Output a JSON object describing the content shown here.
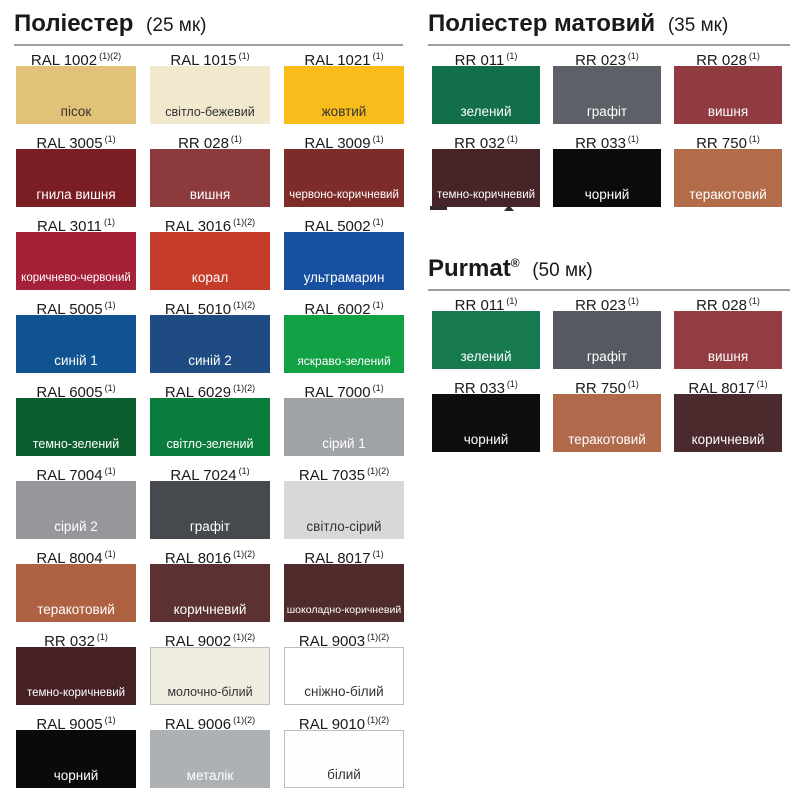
{
  "page": {
    "background": "#ffffff"
  },
  "sections": [
    {
      "id": "polyester",
      "title": "Поліестер",
      "reg": "",
      "suffix": "(25 мк)",
      "swatches": [
        {
          "code": "RAL 1002",
          "sup": "(1)(2)",
          "name": "пісок",
          "color": "#E2C178",
          "label_color": "#3a3428",
          "border": false
        },
        {
          "code": "RAL 1015",
          "sup": "(1)",
          "name": "світло-бежевий",
          "color": "#F2E8CE",
          "label_color": "#333333",
          "border": false
        },
        {
          "code": "RAL 1021",
          "sup": "(1)",
          "name": "жовтий",
          "color": "#F8BC1B",
          "label_color": "#333333",
          "border": false
        },
        {
          "code": "RAL 3005",
          "sup": "(1)",
          "name": "гнила вишня",
          "color": "#7B1E23",
          "label_color": "#ffffff",
          "border": false
        },
        {
          "code": "RR 028",
          "sup": "(1)",
          "name": "вишня",
          "color": "#8D3A3D",
          "label_color": "#ffffff",
          "border": false
        },
        {
          "code": "RAL 3009",
          "sup": "(1)",
          "name": "червоно-коричневий",
          "color": "#7D2C29",
          "label_color": "#ffffff",
          "border": false
        },
        {
          "code": "RAL 3011",
          "sup": "(1)",
          "name": "коричнево-червоний",
          "color": "#A42138",
          "label_color": "#ffffff",
          "border": false
        },
        {
          "code": "RAL 3016",
          "sup": "(1)(2)",
          "name": "корал",
          "color": "#C53C2A",
          "label_color": "#ffffff",
          "border": false
        },
        {
          "code": "RAL 5002",
          "sup": "(1)",
          "name": "ультрамарин",
          "color": "#1750A0",
          "label_color": "#ffffff",
          "border": false
        },
        {
          "code": "RAL 5005",
          "sup": "(1)",
          "name": "синій 1",
          "color": "#0F5490",
          "label_color": "#ffffff",
          "border": false
        },
        {
          "code": "RAL 5010",
          "sup": "(1)(2)",
          "name": "синій 2",
          "color": "#1E4B82",
          "label_color": "#ffffff",
          "border": false
        },
        {
          "code": "RAL 6002",
          "sup": "(1)",
          "name": "яскраво-зелений",
          "color": "#12A245",
          "label_color": "#ffffff",
          "border": false
        },
        {
          "code": "RAL 6005",
          "sup": "(1)",
          "name": "темно-зелений",
          "color": "#0B5D2E",
          "label_color": "#ffffff",
          "border": false
        },
        {
          "code": "RAL 6029",
          "sup": "(1)(2)",
          "name": "світло-зелений",
          "color": "#0A7D3C",
          "label_color": "#ffffff",
          "border": false
        },
        {
          "code": "RAL 7000",
          "sup": "(1)",
          "name": "сірий 1",
          "color": "#9FA2A6",
          "label_color": "#ffffff",
          "border": false
        },
        {
          "code": "RAL 7004",
          "sup": "(1)",
          "name": "сірий 2",
          "color": "#95979B",
          "label_color": "#ffffff",
          "border": false
        },
        {
          "code": "RAL 7024",
          "sup": "(1)",
          "name": "графіт",
          "color": "#46494D",
          "label_color": "#ffffff",
          "border": false
        },
        {
          "code": "RAL 7035",
          "sup": "(1)(2)",
          "name": "світло-сірий",
          "color": "#D6D8DA",
          "label_color": "#333333",
          "border": false
        },
        {
          "code": "RAL 8004",
          "sup": "(1)",
          "name": "теракотовий",
          "color": "#AE6242",
          "label_color": "#ffffff",
          "border": false
        },
        {
          "code": "RAL 8016",
          "sup": "(1)(2)",
          "name": "коричневий",
          "color": "#5C3132",
          "label_color": "#ffffff",
          "border": false
        },
        {
          "code": "RAL 8017",
          "sup": "(1)",
          "name": "шоколадно-коричневий",
          "color": "#4F2B2C",
          "label_color": "#ffffff",
          "border": false
        },
        {
          "code": "RR 032",
          "sup": "(1)",
          "name": "темно-коричневий",
          "color": "#452125",
          "label_color": "#ffffff",
          "border": false
        },
        {
          "code": "RAL 9002",
          "sup": "(1)(2)",
          "name": "молочно-білий",
          "color": "#EFEDE0",
          "label_color": "#333333",
          "border": true
        },
        {
          "code": "RAL 9003",
          "sup": "(1)(2)",
          "name": "сніжно-білий",
          "color": "#FFFFFF",
          "label_color": "#333333",
          "border": true
        },
        {
          "code": "RAL 9005",
          "sup": "(1)",
          "name": "чорний",
          "color": "#0A0A0A",
          "label_color": "#ffffff",
          "border": false
        },
        {
          "code": "RAL 9006",
          "sup": "(1)(2)",
          "name": "металік",
          "color": "#AEB1B4",
          "label_color": "#ffffff",
          "border": false
        },
        {
          "code": "RAL 9010",
          "sup": "(1)(2)",
          "name": "білий",
          "color": "#FEFEFE",
          "label_color": "#333333",
          "border": true
        }
      ]
    },
    {
      "id": "polyester-matte",
      "title": "Поліестер матовий",
      "reg": "",
      "suffix": "(35 мк)",
      "swatches": [
        {
          "code": "RR 011",
          "sup": "(1)",
          "name": "зелений",
          "color": "#136F4A",
          "label_color": "#ffffff",
          "border": false
        },
        {
          "code": "RR 023",
          "sup": "(1)",
          "name": "графіт",
          "color": "#5D6167",
          "label_color": "#ffffff",
          "border": false
        },
        {
          "code": "RR 028",
          "sup": "(1)",
          "name": "вишня",
          "color": "#8F3B3F",
          "label_color": "#ffffff",
          "border": false
        },
        {
          "code": "RR 032",
          "sup": "(1)",
          "name": "темно-коричневий",
          "color": "#462428",
          "label_color": "#ffffff",
          "border": false
        },
        {
          "code": "RR 033",
          "sup": "(1)",
          "name": "чорний",
          "color": "#0B0B0B",
          "label_color": "#ffffff",
          "border": false
        },
        {
          "code": "RR 750",
          "sup": "(1)",
          "name": "теракотовий",
          "color": "#B26C49",
          "label_color": "#ffffff",
          "border": false
        }
      ]
    },
    {
      "id": "purmat",
      "title": "Purmat",
      "reg": "®",
      "suffix": "(50 мк)",
      "swatches": [
        {
          "code": "RR 011",
          "sup": "(1)",
          "name": "зелений",
          "color": "#16794F",
          "label_color": "#ffffff",
          "border": false
        },
        {
          "code": "RR 023",
          "sup": "(1)",
          "name": "графіт",
          "color": "#565A60",
          "label_color": "#ffffff",
          "border": false
        },
        {
          "code": "RR 028",
          "sup": "(1)",
          "name": "вишня",
          "color": "#933C41",
          "label_color": "#ffffff",
          "border": false
        },
        {
          "code": "RR 033",
          "sup": "(1)",
          "name": "чорний",
          "color": "#0D0D0D",
          "label_color": "#ffffff",
          "border": false
        },
        {
          "code": "RR 750",
          "sup": "(1)",
          "name": "теракотовий",
          "color": "#B06A4B",
          "label_color": "#ffffff",
          "border": false
        },
        {
          "code": "RAL 8017",
          "sup": "(1)",
          "name": "коричневий",
          "color": "#4B2A2D",
          "label_color": "#ffffff",
          "border": false
        }
      ]
    }
  ]
}
